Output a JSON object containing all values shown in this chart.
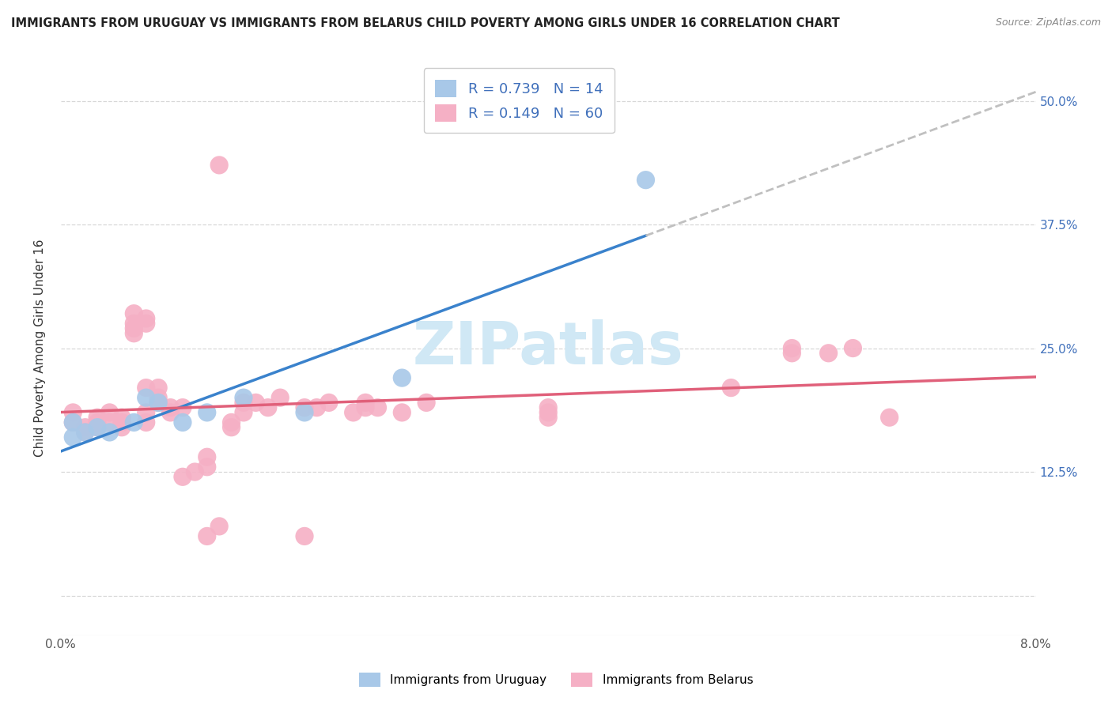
{
  "title": "IMMIGRANTS FROM URUGUAY VS IMMIGRANTS FROM BELARUS CHILD POVERTY AMONG GIRLS UNDER 16 CORRELATION CHART",
  "source": "Source: ZipAtlas.com",
  "ylabel": "Child Poverty Among Girls Under 16",
  "xlim": [
    0.0,
    0.08
  ],
  "ylim": [
    -0.04,
    0.54
  ],
  "ytick_positions": [
    0.0,
    0.125,
    0.25,
    0.375,
    0.5
  ],
  "ytick_labels": [
    "",
    "12.5%",
    "25.0%",
    "37.5%",
    "50.0%"
  ],
  "xtick_positions": [
    0.0,
    0.02,
    0.04,
    0.06,
    0.08
  ],
  "xtick_labels": [
    "0.0%",
    "",
    "",
    "",
    "8.0%"
  ],
  "background_color": "#ffffff",
  "grid_color": "#d8d8d8",
  "uruguay_color": "#a8c8e8",
  "belarus_color": "#f5b0c5",
  "uruguay_line_color": "#3a82cc",
  "belarus_line_color": "#e0607a",
  "dashed_color": "#c0c0c0",
  "legend_color": "#4070bb",
  "watermark_color": "#d0e8f5",
  "uruguay_R": 0.739,
  "uruguay_N": 14,
  "belarus_R": 0.149,
  "belarus_N": 60,
  "uruguay_points": [
    [
      0.001,
      0.175
    ],
    [
      0.001,
      0.16
    ],
    [
      0.002,
      0.165
    ],
    [
      0.003,
      0.17
    ],
    [
      0.004,
      0.165
    ],
    [
      0.006,
      0.175
    ],
    [
      0.007,
      0.2
    ],
    [
      0.008,
      0.195
    ],
    [
      0.01,
      0.175
    ],
    [
      0.012,
      0.185
    ],
    [
      0.015,
      0.2
    ],
    [
      0.02,
      0.185
    ],
    [
      0.028,
      0.22
    ],
    [
      0.048,
      0.42
    ]
  ],
  "belarus_points": [
    [
      0.001,
      0.185
    ],
    [
      0.001,
      0.175
    ],
    [
      0.002,
      0.17
    ],
    [
      0.002,
      0.165
    ],
    [
      0.003,
      0.175
    ],
    [
      0.003,
      0.18
    ],
    [
      0.003,
      0.17
    ],
    [
      0.004,
      0.185
    ],
    [
      0.004,
      0.175
    ],
    [
      0.005,
      0.18
    ],
    [
      0.005,
      0.175
    ],
    [
      0.005,
      0.17
    ],
    [
      0.006,
      0.275
    ],
    [
      0.006,
      0.285
    ],
    [
      0.006,
      0.27
    ],
    [
      0.006,
      0.265
    ],
    [
      0.007,
      0.275
    ],
    [
      0.007,
      0.28
    ],
    [
      0.007,
      0.175
    ],
    [
      0.007,
      0.185
    ],
    [
      0.007,
      0.21
    ],
    [
      0.008,
      0.21
    ],
    [
      0.008,
      0.2
    ],
    [
      0.008,
      0.195
    ],
    [
      0.009,
      0.19
    ],
    [
      0.009,
      0.185
    ],
    [
      0.01,
      0.19
    ],
    [
      0.01,
      0.12
    ],
    [
      0.011,
      0.125
    ],
    [
      0.012,
      0.14
    ],
    [
      0.012,
      0.13
    ],
    [
      0.012,
      0.06
    ],
    [
      0.013,
      0.07
    ],
    [
      0.014,
      0.175
    ],
    [
      0.014,
      0.17
    ],
    [
      0.015,
      0.195
    ],
    [
      0.015,
      0.185
    ],
    [
      0.016,
      0.195
    ],
    [
      0.017,
      0.19
    ],
    [
      0.018,
      0.2
    ],
    [
      0.02,
      0.19
    ],
    [
      0.021,
      0.19
    ],
    [
      0.022,
      0.195
    ],
    [
      0.024,
      0.185
    ],
    [
      0.025,
      0.19
    ],
    [
      0.026,
      0.19
    ],
    [
      0.028,
      0.185
    ],
    [
      0.03,
      0.195
    ],
    [
      0.013,
      0.435
    ],
    [
      0.025,
      0.195
    ],
    [
      0.04,
      0.185
    ],
    [
      0.04,
      0.19
    ],
    [
      0.04,
      0.18
    ],
    [
      0.055,
      0.21
    ],
    [
      0.06,
      0.245
    ],
    [
      0.063,
      0.245
    ],
    [
      0.065,
      0.25
    ],
    [
      0.02,
      0.06
    ],
    [
      0.06,
      0.25
    ],
    [
      0.068,
      0.18
    ]
  ]
}
